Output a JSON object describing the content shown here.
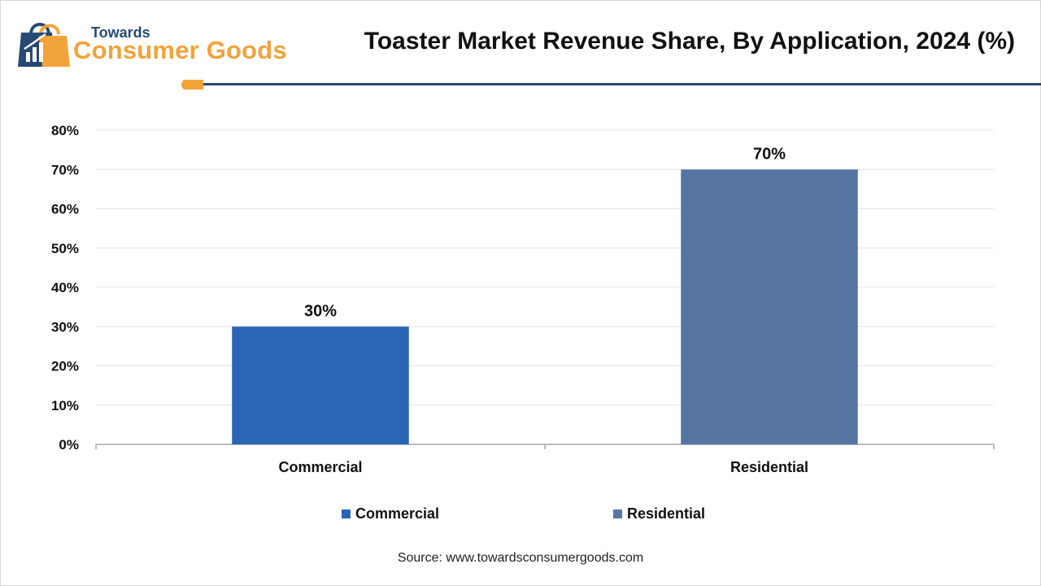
{
  "brand": {
    "top_text": "Towards",
    "bottom_text": "Consumer Goods",
    "primary_color": "#274a74",
    "accent_color": "#f2a33a"
  },
  "title": "Toaster Market Revenue Share, By Application, 2024 (%)",
  "chart_data": {
    "type": "bar",
    "title": "Toaster Market Revenue Share, By Application, 2024 (%)",
    "categories": [
      "Commercial",
      "Residential"
    ],
    "values": [
      30,
      70
    ],
    "value_labels": [
      "30%",
      "70%"
    ],
    "colors": [
      "#2b65b5",
      "#5675a2"
    ],
    "xlabel": "",
    "ylabel": "",
    "ylim": [
      0,
      80
    ],
    "yticks": [
      0,
      10,
      20,
      30,
      40,
      50,
      60,
      70,
      80
    ],
    "ytick_labels": [
      "0%",
      "10%",
      "20%",
      "30%",
      "40%",
      "50%",
      "60%",
      "70%",
      "80%"
    ],
    "grid": true,
    "legend": "bottom-center",
    "legend_entries": [
      {
        "name": "Commercial",
        "color": "#2b65b5"
      },
      {
        "name": "Residential",
        "color": "#5675a2"
      }
    ]
  },
  "source": "Source: www.towardsconsumergoods.com"
}
